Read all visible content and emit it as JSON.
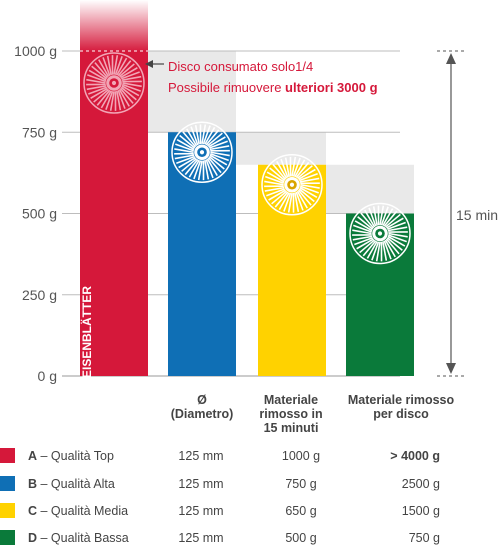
{
  "chart_data": {
    "type": "bar",
    "y_ticks": [
      "1000 g",
      "750 g",
      "500 g",
      "250 g",
      "0 g"
    ],
    "ylim": [
      0,
      1000
    ],
    "time_label": "15 min",
    "vertical_label": "EISENBLÄTTER",
    "annotation": {
      "line1": "Disco consumato solo1/4",
      "line2_prefix": "Possibile rimuovere ",
      "line2_bold": "ulteriori 3000 g"
    },
    "bars": [
      {
        "letter": "A",
        "name": "Qualità Top",
        "color": "#d5183a",
        "value": 1000,
        "disc_color": "#f2a6b6",
        "disc_center": "#d5183a"
      },
      {
        "letter": "B",
        "name": "Qualità Alta",
        "color": "#0f6fb5",
        "value": 750,
        "disc_color": "#ffffff",
        "disc_center": "#0f6fb5"
      },
      {
        "letter": "C",
        "name": "Qualità Media",
        "color": "#ffd200",
        "value": 650,
        "disc_color": "#ffffff",
        "disc_center": "#d9a400"
      },
      {
        "letter": "D",
        "name": "Qualità Bassa",
        "color": "#0a7a3a",
        "value": 500,
        "disc_color": "#ffffff",
        "disc_center": "#0a7a3a"
      }
    ],
    "columns": [
      {
        "label": [
          "Ø",
          "(Diametro)"
        ]
      },
      {
        "label": [
          "Materiale",
          "rimosso in",
          "15 minuti"
        ]
      },
      {
        "label": [
          "Materiale rimosso",
          "per disco"
        ]
      }
    ],
    "rows": [
      {
        "legend_letter": "A",
        "legend_sep": " – ",
        "legend_name": "Qualità Top",
        "diameter": "125 mm",
        "removed_15": "1000 g",
        "per_disc": "> 4000 g",
        "highlight": true
      },
      {
        "legend_letter": "B",
        "legend_sep": " – ",
        "legend_name": "Qualità Alta",
        "diameter": "125 mm",
        "removed_15": "750 g",
        "per_disc": "2500 g",
        "highlight": false
      },
      {
        "legend_letter": "C",
        "legend_sep": " – ",
        "legend_name": "Qualità Media",
        "diameter": "125 mm",
        "removed_15": "650 g",
        "per_disc": "1500 g",
        "highlight": false
      },
      {
        "legend_letter": "D",
        "legend_sep": " – ",
        "legend_name": "Qualità Bassa",
        "diameter": "125 mm",
        "removed_15": "500 g",
        "per_disc": "750 g",
        "highlight": false
      }
    ],
    "colors": {
      "grid": "#bdbdbd",
      "band": "#e9e9e9",
      "highlight_text": "#d5183a",
      "axis_text": "#555555"
    }
  }
}
